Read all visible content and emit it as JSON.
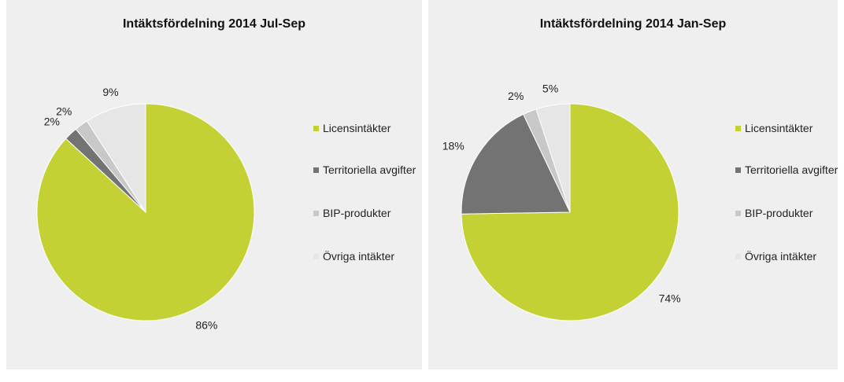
{
  "chart_data": [
    {
      "type": "pie",
      "title": "Intäktsfördelning 2014 Jul-Sep",
      "categories": [
        "Licensintäkter",
        "Territoriella avgifter",
        "BIP-produkter",
        "Övriga intäkter"
      ],
      "values": [
        86,
        2,
        2,
        9
      ],
      "value_labels": [
        "86%",
        "2%",
        "2%",
        "9%"
      ],
      "colors": [
        "#c3d135",
        "#737373",
        "#c8c8c8",
        "#e6e6e6"
      ],
      "legend": "right"
    },
    {
      "type": "pie",
      "title": "Intäktsfördelning 2014 Jan-Sep",
      "categories": [
        "Licensintäkter",
        "Territoriella avgifter",
        "BIP-produkter",
        "Övriga intäkter"
      ],
      "values": [
        74,
        18,
        2,
        5
      ],
      "value_labels": [
        "74%",
        "18%",
        "2%",
        "5%"
      ],
      "colors": [
        "#c3d135",
        "#737373",
        "#c8c8c8",
        "#e6e6e6"
      ],
      "legend": "right"
    }
  ]
}
